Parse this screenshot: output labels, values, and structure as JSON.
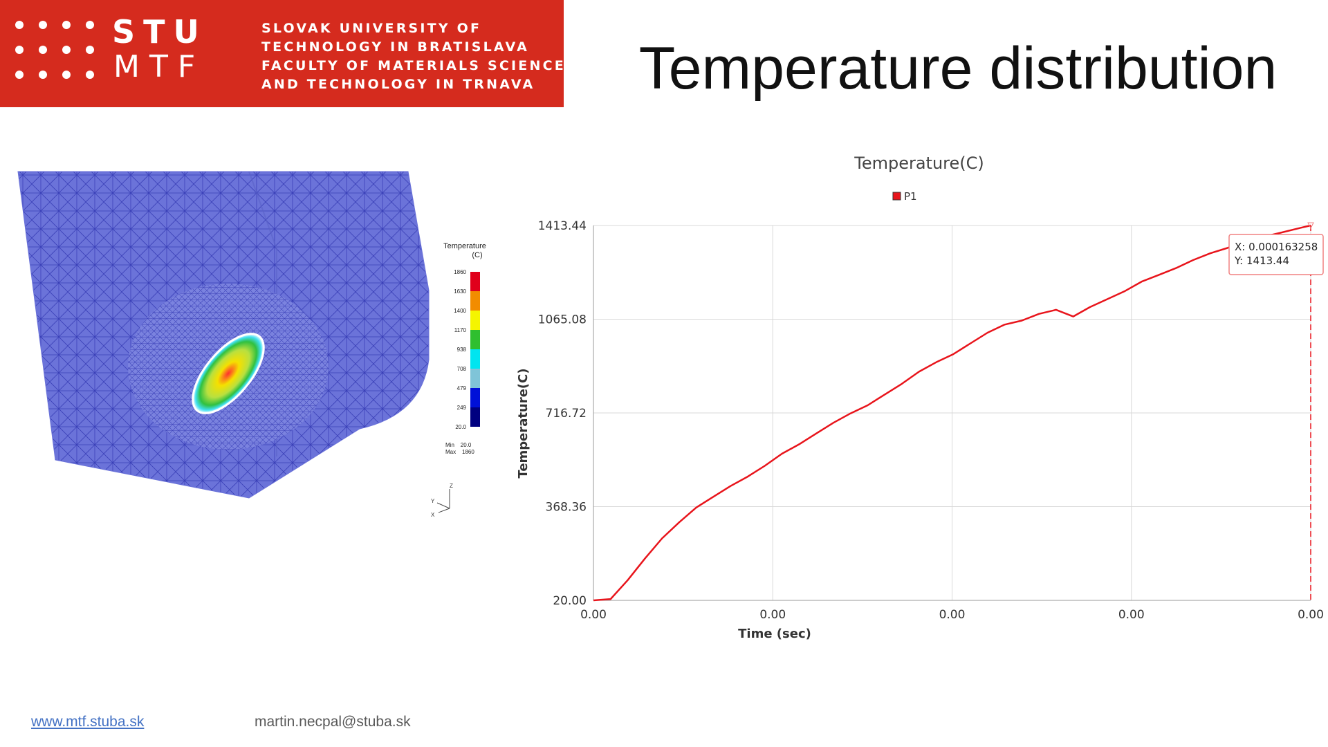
{
  "header": {
    "logo_top": "STU",
    "logo_bottom": "MTF",
    "university_lines": [
      "SLOVAK UNIVERSITY OF",
      "TECHNOLOGY IN BRATISLAVA",
      "FACULTY OF MATERIALS SCIENCE",
      "AND TECHNOLOGY IN TRNAVA"
    ],
    "brand_color": "#d52b1e"
  },
  "slide": {
    "title": "Temperature distribution"
  },
  "simulation": {
    "legend_title_1": "Temperature",
    "legend_title_2": "(C)",
    "scale_labels": [
      "1860",
      "1630",
      "1400",
      "1170",
      "938",
      "708",
      "479",
      "249",
      "20.0"
    ],
    "scale_colors": [
      "#e0001b",
      "#f28c00",
      "#f5f500",
      "#2fbf2f",
      "#00e5f0",
      "#7fc4d8",
      "#0010d8",
      "#000080"
    ],
    "min_label": "Min",
    "min_value": "20.0",
    "max_label": "Max",
    "max_value": "1860",
    "axis_z": "Z",
    "axis_y": "Y",
    "axis_x": "X",
    "mesh_color": "#6b73d9"
  },
  "chart_data": {
    "type": "line",
    "title": "Temperature(C)",
    "xlabel": "Time (sec)",
    "ylabel": "Temperature(C)",
    "y_ticks": [
      "20.00",
      "368.36",
      "716.72",
      "1065.08",
      "1413.44"
    ],
    "x_ticks": [
      "0.00",
      "0.00",
      "0.00",
      "0.00",
      "0.00"
    ],
    "ylim": [
      20.0,
      1413.44
    ],
    "xlim": [
      0.0,
      0.000163258
    ],
    "grid": true,
    "legend_position": "top-center",
    "series": [
      {
        "name": "P1",
        "color": "#e8141b",
        "x": [
          0,
          3.9e-06,
          7.8e-06,
          1.17e-05,
          1.56e-05,
          1.95e-05,
          2.34e-05,
          2.73e-05,
          3.12e-05,
          3.51e-05,
          3.9e-05,
          4.29e-05,
          4.68e-05,
          5.07e-05,
          5.46e-05,
          5.85e-05,
          6.24e-05,
          6.63e-05,
          7.02e-05,
          7.41e-05,
          7.8e-05,
          8.19e-05,
          8.58e-05,
          8.97e-05,
          9.36e-05,
          9.75e-05,
          0.0001014,
          0.0001053,
          0.0001092,
          0.000113,
          0.000117,
          0.000121,
          0.0001248,
          0.0001287,
          0.0001326,
          0.0001365,
          0.0001404,
          0.0001443,
          0.0001482,
          0.0001521,
          0.000156,
          0.000161,
          0.000163258
        ],
        "y": [
          20,
          25,
          95,
          175,
          250,
          310,
          365,
          405,
          445,
          480,
          520,
          565,
          600,
          640,
          680,
          715,
          745,
          785,
          825,
          870,
          905,
          935,
          975,
          1015,
          1045,
          1060,
          1085,
          1100,
          1075,
          1110,
          1140,
          1170,
          1205,
          1230,
          1255,
          1285,
          1310,
          1330,
          1355,
          1370,
          1385,
          1405,
          1413.44
        ]
      }
    ],
    "tooltip": {
      "x_text": "X: 0.000163258",
      "y_text": "Y: 1413.44"
    }
  },
  "footer": {
    "website": "www.mtf.stuba.sk",
    "email": "martin.necpal@stuba.sk"
  }
}
